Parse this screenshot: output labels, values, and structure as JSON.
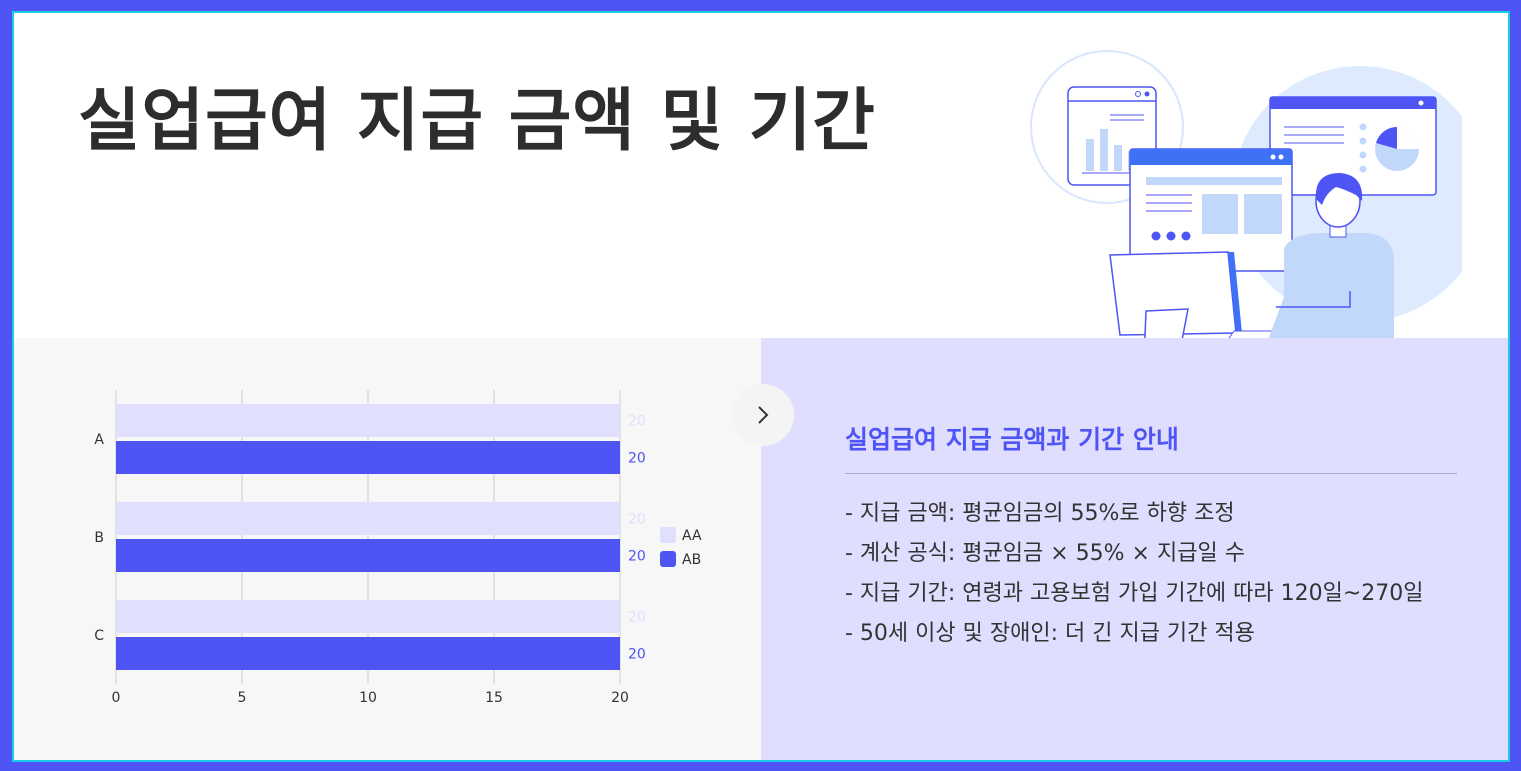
{
  "page": {
    "title": "실업급여 지급 금액 및 기간"
  },
  "colors": {
    "accent": "#4f54f5",
    "light_series": "#e0dffd",
    "frame_border": "#1ccbe6",
    "panel_right": "#dfdefe"
  },
  "chart_data": {
    "type": "bar",
    "orientation": "horizontal",
    "categories": [
      "A",
      "B",
      "C"
    ],
    "series": [
      {
        "name": "AA",
        "values": [
          20,
          20,
          20
        ],
        "color": "#e0dffd"
      },
      {
        "name": "AB",
        "values": [
          20,
          20,
          20
        ],
        "color": "#4f54f5"
      }
    ],
    "xlim": [
      0,
      20
    ],
    "x_ticks": [
      "0",
      "5",
      "10",
      "15",
      "20"
    ],
    "grid": true,
    "legend_position": "right",
    "data_labels": true
  },
  "info": {
    "title": "실업급여 지급 금액과 기간 안내",
    "items": [
      "- 지급 금액: 평균임금의 55%로 하향 조정",
      "- 계산 공식: 평균임금 × 55% × 지급일 수",
      "- 지급 기간: 연령과 고용보험 가입 기간에 따라 120일~270일",
      "- 50세 이상 및 장애인: 더 긴 지급 기간 적용"
    ]
  },
  "icons": {
    "next": "chevron-right-icon",
    "illustration": "person-at-computer-illustration"
  }
}
